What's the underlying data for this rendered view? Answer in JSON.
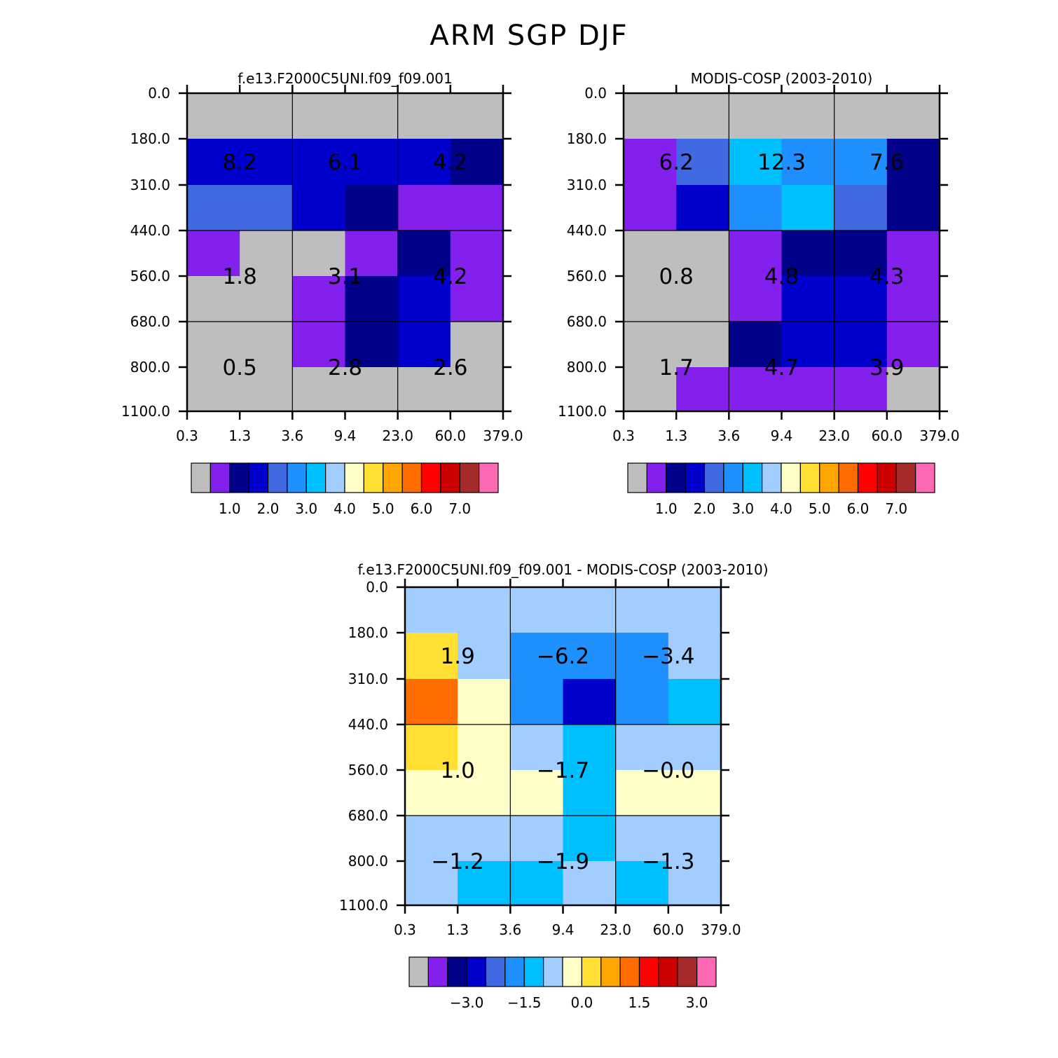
{
  "title": "ARM SGP DJF",
  "colors": {
    "abs": [
      "#bebebe",
      "#8320ee",
      "#00008b",
      "#0000cd",
      "#4169e1",
      "#1e90ff",
      "#00bfff",
      "#a2cdff",
      "#ffffc8",
      "#ffe033",
      "#ffa500",
      "#ff6d00",
      "#ff0000",
      "#cd0000",
      "#a52a2a",
      "#ff69b4"
    ],
    "diff": [
      "#bebebe",
      "#8320ee",
      "#00008b",
      "#0000cd",
      "#4169e1",
      "#1e90ff",
      "#00bfff",
      "#a2cdff",
      "#ffffc8",
      "#ffe033",
      "#ffa500",
      "#ff6d00",
      "#ff0000",
      "#cd0000",
      "#a52a2a",
      "#ff69b4"
    ]
  },
  "chart_data": [
    {
      "type": "heatmap",
      "title": "f.e13.F2000C5UNI.f09_f09.001",
      "x_ticks": [
        "0.3",
        "1.3",
        "3.6",
        "9.4",
        "23.0",
        "60.0",
        "379.0"
      ],
      "y_ticks": [
        "0.0",
        "180.0",
        "310.0",
        "440.0",
        "560.0",
        "680.0",
        "800.0",
        "1100.0"
      ],
      "cells": [
        [
          0,
          0,
          0,
          0,
          0,
          0
        ],
        [
          3,
          3,
          3,
          3,
          3,
          2
        ],
        [
          4,
          4,
          3,
          2,
          1,
          1
        ],
        [
          1,
          0,
          0,
          1,
          2,
          1
        ],
        [
          0,
          0,
          1,
          2,
          3,
          1
        ],
        [
          0,
          0,
          1,
          2,
          3,
          0
        ],
        [
          0,
          0,
          0,
          0,
          0,
          0
        ]
      ],
      "box_labels": [
        {
          "col": 0,
          "row": 0,
          "text": "8.2"
        },
        {
          "col": 1,
          "row": 0,
          "text": "6.1"
        },
        {
          "col": 2,
          "row": 0,
          "text": "4.2"
        },
        {
          "col": 0,
          "row": 1,
          "text": "1.8"
        },
        {
          "col": 1,
          "row": 1,
          "text": "3.1"
        },
        {
          "col": 2,
          "row": 1,
          "text": "4.2"
        },
        {
          "col": 0,
          "row": 2,
          "text": "0.5"
        },
        {
          "col": 1,
          "row": 2,
          "text": "2.8"
        },
        {
          "col": 2,
          "row": 2,
          "text": "2.6"
        }
      ],
      "colorbar": {
        "palette": "abs",
        "labels": [
          "1.0",
          "2.0",
          "3.0",
          "4.0",
          "5.0",
          "6.0",
          "7.0"
        ]
      }
    },
    {
      "type": "heatmap",
      "title": "MODIS-COSP (2003-2010)",
      "x_ticks": [
        "0.3",
        "1.3",
        "3.6",
        "9.4",
        "23.0",
        "60.0",
        "379.0"
      ],
      "y_ticks": [
        "0.0",
        "180.0",
        "310.0",
        "440.0",
        "560.0",
        "680.0",
        "800.0",
        "1100.0"
      ],
      "cells": [
        [
          0,
          0,
          0,
          0,
          0,
          0
        ],
        [
          1,
          4,
          6,
          5,
          5,
          2
        ],
        [
          1,
          3,
          5,
          6,
          4,
          2
        ],
        [
          0,
          0,
          1,
          2,
          2,
          1
        ],
        [
          0,
          0,
          1,
          3,
          3,
          1
        ],
        [
          0,
          0,
          2,
          3,
          3,
          1
        ],
        [
          0,
          1,
          1,
          1,
          1,
          0
        ]
      ],
      "box_labels": [
        {
          "col": 0,
          "row": 0,
          "text": "6.2"
        },
        {
          "col": 1,
          "row": 0,
          "text": "12.3"
        },
        {
          "col": 2,
          "row": 0,
          "text": "7.6"
        },
        {
          "col": 0,
          "row": 1,
          "text": "0.8"
        },
        {
          "col": 1,
          "row": 1,
          "text": "4.8"
        },
        {
          "col": 2,
          "row": 1,
          "text": "4.3"
        },
        {
          "col": 0,
          "row": 2,
          "text": "1.7"
        },
        {
          "col": 1,
          "row": 2,
          "text": "4.7"
        },
        {
          "col": 2,
          "row": 2,
          "text": "3.9"
        }
      ],
      "colorbar": {
        "palette": "abs",
        "labels": [
          "1.0",
          "2.0",
          "3.0",
          "4.0",
          "5.0",
          "6.0",
          "7.0"
        ]
      }
    },
    {
      "type": "heatmap",
      "title": "f.e13.F2000C5UNI.f09_f09.001 - MODIS-COSP (2003-2010)",
      "x_ticks": [
        "0.3",
        "1.3",
        "3.6",
        "9.4",
        "23.0",
        "60.0",
        "379.0"
      ],
      "y_ticks": [
        "0.0",
        "180.0",
        "310.0",
        "440.0",
        "560.0",
        "680.0",
        "800.0",
        "1100.0"
      ],
      "cells": [
        [
          7,
          7,
          7,
          7,
          7,
          7
        ],
        [
          9,
          7,
          5,
          5,
          5,
          7
        ],
        [
          11,
          8,
          5,
          3,
          5,
          6
        ],
        [
          9,
          8,
          7,
          6,
          7,
          7
        ],
        [
          8,
          8,
          8,
          6,
          8,
          8
        ],
        [
          7,
          7,
          7,
          6,
          7,
          7
        ],
        [
          7,
          6,
          6,
          7,
          6,
          7
        ]
      ],
      "box_labels": [
        {
          "col": 0,
          "row": 0,
          "text": "1.9"
        },
        {
          "col": 1,
          "row": 0,
          "text": "−6.2"
        },
        {
          "col": 2,
          "row": 0,
          "text": "−3.4"
        },
        {
          "col": 0,
          "row": 1,
          "text": "1.0"
        },
        {
          "col": 1,
          "row": 1,
          "text": "−1.7"
        },
        {
          "col": 2,
          "row": 1,
          "text": "−0.0"
        },
        {
          "col": 0,
          "row": 2,
          "text": "−1.2"
        },
        {
          "col": 1,
          "row": 2,
          "text": "−1.9"
        },
        {
          "col": 2,
          "row": 2,
          "text": "−1.3"
        }
      ],
      "colorbar": {
        "palette": "diff",
        "labels": [
          "−3.0",
          "−1.5",
          "0.0",
          "1.5",
          "3.0"
        ]
      }
    }
  ]
}
